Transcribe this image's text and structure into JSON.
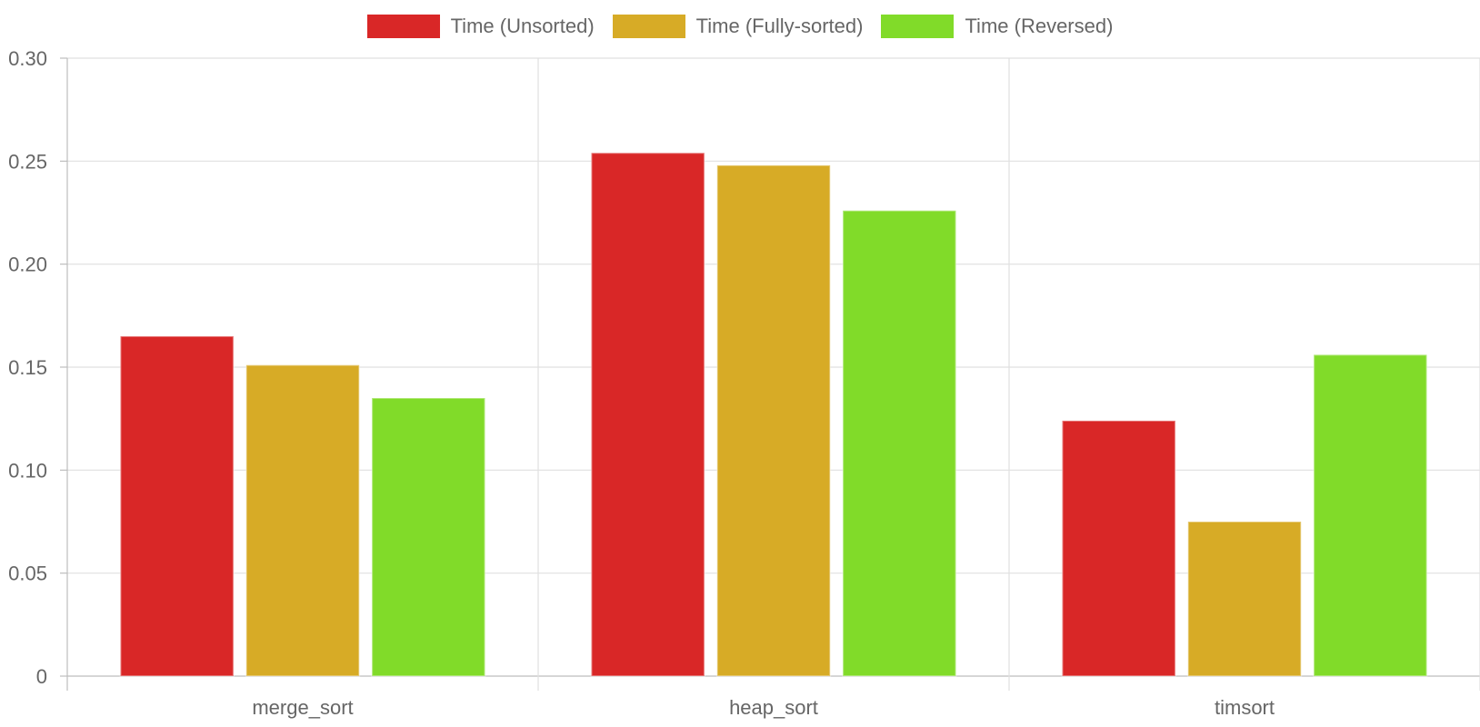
{
  "chart_data": {
    "type": "bar",
    "categories": [
      "merge_sort",
      "heap_sort",
      "timsort"
    ],
    "series": [
      {
        "name": "Time (Unsorted)",
        "color": "#d92727",
        "values": [
          0.165,
          0.254,
          0.124
        ]
      },
      {
        "name": "Time (Fully-sorted)",
        "color": "#d7ab26",
        "values": [
          0.151,
          0.248,
          0.075
        ]
      },
      {
        "name": "Time (Reversed)",
        "color": "#81db29",
        "values": [
          0.135,
          0.226,
          0.156
        ]
      }
    ],
    "y_ticks": [
      "0",
      "0.05",
      "0.10",
      "0.15",
      "0.20",
      "0.25",
      "0.30"
    ],
    "ylim": [
      0,
      0.3
    ],
    "grid": true,
    "legend_position": "top-center",
    "title": "",
    "xlabel": "",
    "ylabel": ""
  }
}
